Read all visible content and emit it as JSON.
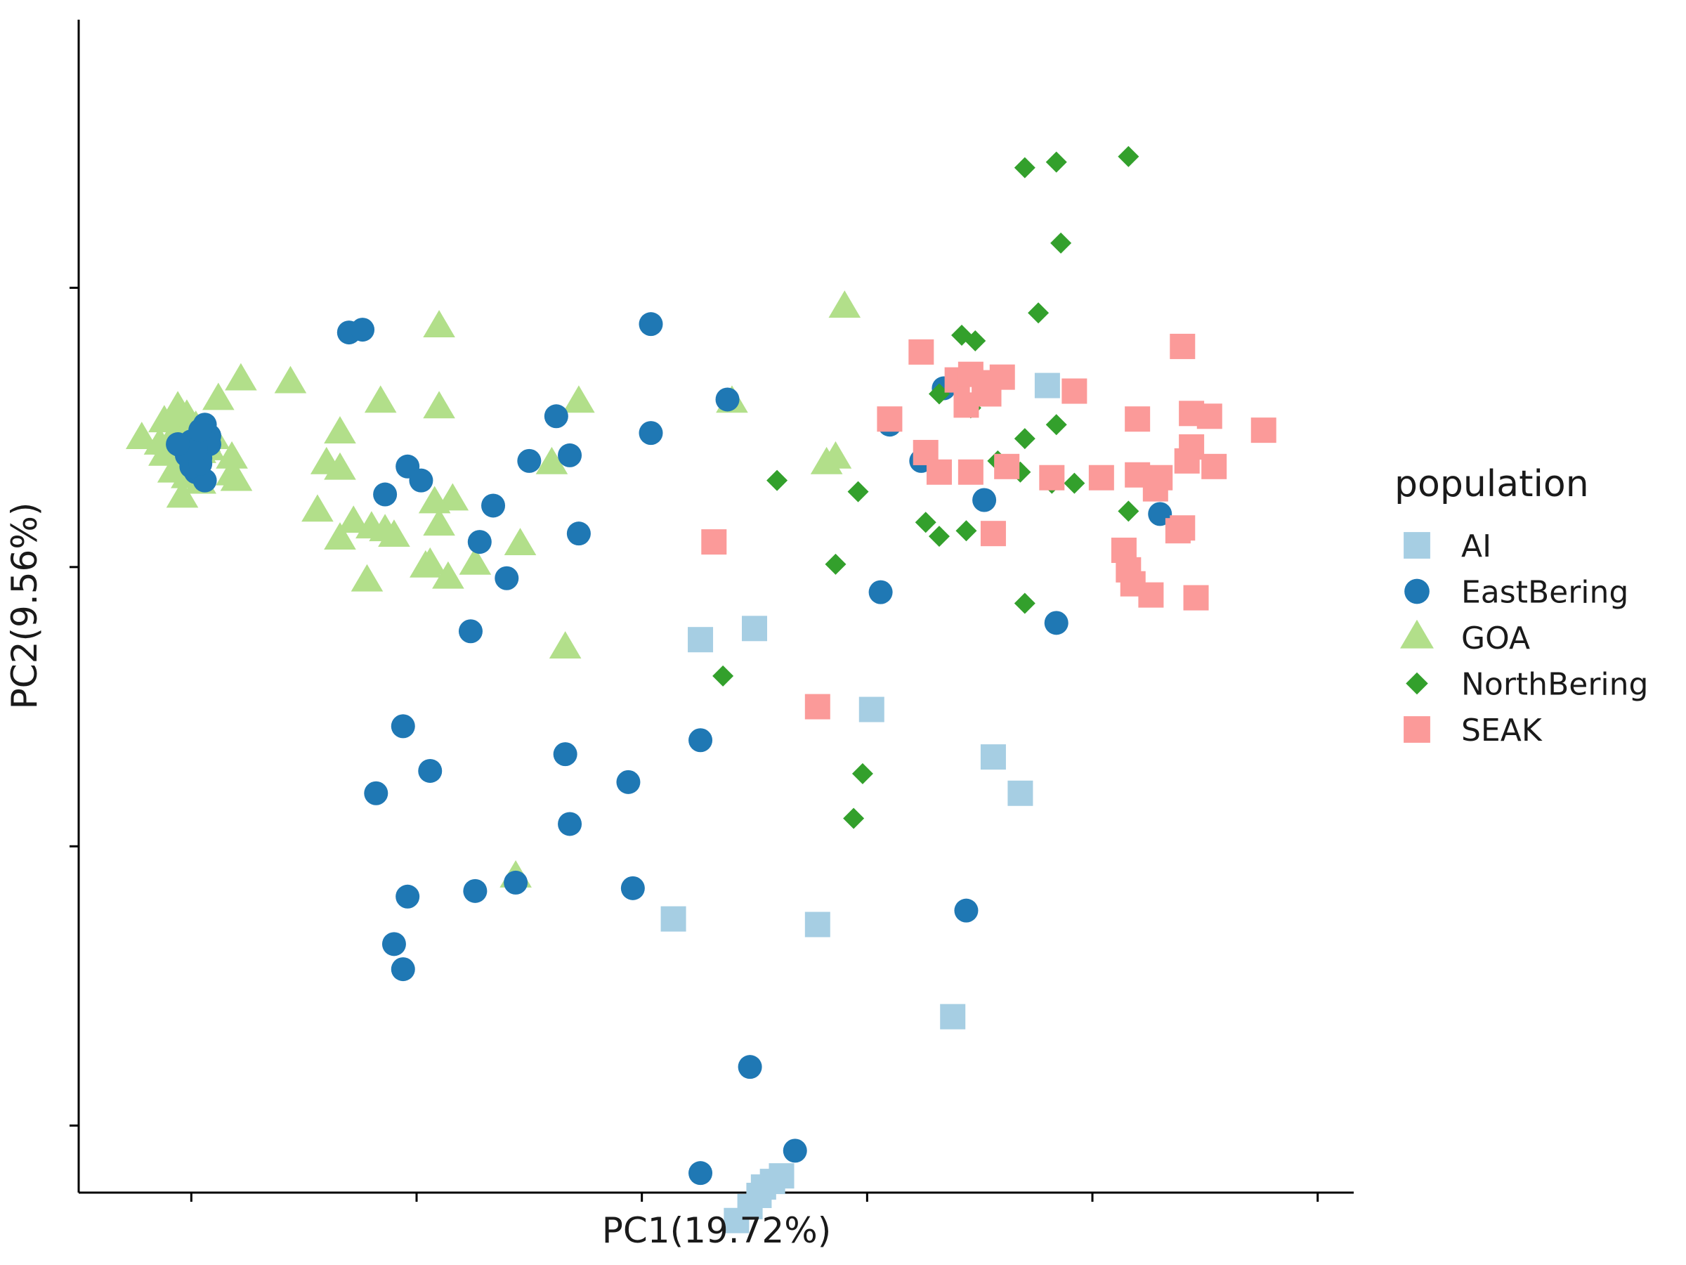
{
  "chart_data": {
    "type": "scatter",
    "xlabel": "PC1(19.72%)",
    "ylabel": "PC2(9.56%)",
    "xlim": [
      -2.5,
      25.8
    ],
    "ylim": [
      -14.4,
      27.6
    ],
    "xticks": [
      0,
      5,
      10,
      15,
      20,
      25
    ],
    "yticks": [
      -12,
      -2,
      8,
      18
    ],
    "grid": false,
    "legend": {
      "title": "population",
      "position": "right"
    },
    "series": [
      {
        "name": "AI",
        "marker": "square",
        "color": "#a6cee3",
        "points": [
          [
            11.3,
            5.4
          ],
          [
            12.5,
            5.8
          ],
          [
            15.1,
            2.9
          ],
          [
            10.7,
            -4.6
          ],
          [
            13.9,
            -4.8
          ],
          [
            18.4,
            -0.1
          ],
          [
            16.9,
            -8.1
          ],
          [
            12.1,
            -15.4
          ],
          [
            12.4,
            -14.9
          ],
          [
            12.7,
            -14.2
          ],
          [
            12.9,
            -14.0
          ],
          [
            13.1,
            -13.8
          ],
          [
            12.6,
            -14.5
          ],
          [
            17.8,
            1.2
          ],
          [
            19.0,
            14.5
          ]
        ]
      },
      {
        "name": "EastBering",
        "marker": "circle",
        "color": "#1f78b4",
        "points": [
          [
            0.3,
            13.1
          ],
          [
            0.4,
            12.7
          ],
          [
            0.2,
            11.9
          ],
          [
            -0.2,
            12.3
          ],
          [
            0.1,
            11.4
          ],
          [
            0.3,
            11.1
          ],
          [
            0.0,
            11.6
          ],
          [
            -0.1,
            12.0
          ],
          [
            0.0,
            12.5
          ],
          [
            0.4,
            12.4
          ],
          [
            0.2,
            11.7
          ],
          [
            0.1,
            12.2
          ],
          [
            -0.3,
            12.4
          ],
          [
            0.2,
            12.9
          ],
          [
            3.5,
            16.4
          ],
          [
            3.8,
            16.5
          ],
          [
            4.3,
            10.6
          ],
          [
            4.8,
            11.6
          ],
          [
            5.1,
            11.1
          ],
          [
            6.7,
            10.2
          ],
          [
            6.4,
            8.9
          ],
          [
            8.1,
            13.4
          ],
          [
            10.2,
            16.7
          ],
          [
            11.9,
            14.0
          ],
          [
            10.2,
            12.8
          ],
          [
            8.4,
            12.0
          ],
          [
            7.5,
            11.8
          ],
          [
            8.6,
            9.2
          ],
          [
            7.0,
            7.6
          ],
          [
            6.2,
            5.7
          ],
          [
            4.7,
            2.3
          ],
          [
            8.3,
            1.3
          ],
          [
            9.7,
            0.3
          ],
          [
            11.3,
            1.8
          ],
          [
            4.1,
            -0.1
          ],
          [
            5.3,
            0.7
          ],
          [
            8.4,
            -1.2
          ],
          [
            4.8,
            -3.8
          ],
          [
            6.3,
            -3.6
          ],
          [
            9.8,
            -3.5
          ],
          [
            7.2,
            -3.3
          ],
          [
            4.5,
            -5.5
          ],
          [
            4.7,
            -6.4
          ],
          [
            12.4,
            -9.9
          ],
          [
            13.4,
            -12.9
          ],
          [
            11.3,
            -13.7
          ],
          [
            17.2,
            -4.3
          ],
          [
            15.3,
            7.1
          ],
          [
            19.2,
            6.0
          ],
          [
            21.5,
            9.9
          ],
          [
            16.7,
            14.4
          ],
          [
            17.6,
            10.4
          ],
          [
            16.2,
            11.8
          ],
          [
            15.5,
            13.1
          ]
        ]
      },
      {
        "name": "GOA",
        "marker": "triangle",
        "color": "#b2df8a",
        "points": [
          [
            -1.1,
            12.6
          ],
          [
            -0.5,
            12.4
          ],
          [
            -0.3,
            12.8
          ],
          [
            -0.1,
            13.4
          ],
          [
            -0.6,
            12.0
          ],
          [
            0.1,
            12.0
          ],
          [
            -0.4,
            11.4
          ],
          [
            -0.1,
            11.7
          ],
          [
            0.3,
            12.5
          ],
          [
            -0.2,
            12.9
          ],
          [
            -0.6,
            13.2
          ],
          [
            -0.3,
            13.7
          ],
          [
            0.5,
            12.6
          ],
          [
            0.2,
            12.1
          ],
          [
            -0.7,
            12.4
          ],
          [
            -0.1,
            11.2
          ],
          [
            0.2,
            11.0
          ],
          [
            0.0,
            12.8
          ],
          [
            -0.4,
            13.3
          ],
          [
            -0.2,
            12.6
          ],
          [
            0.4,
            12.2
          ],
          [
            0.1,
            13.0
          ],
          [
            0.9,
            11.9
          ],
          [
            0.9,
            11.3
          ],
          [
            1.0,
            11.1
          ],
          [
            -0.2,
            10.5
          ],
          [
            0.6,
            14.0
          ],
          [
            1.1,
            14.7
          ],
          [
            2.2,
            14.6
          ],
          [
            3.3,
            12.8
          ],
          [
            3.0,
            11.7
          ],
          [
            3.3,
            11.5
          ],
          [
            4.2,
            13.9
          ],
          [
            5.5,
            16.6
          ],
          [
            5.5,
            13.7
          ],
          [
            5.8,
            10.4
          ],
          [
            2.8,
            10.0
          ],
          [
            3.6,
            9.6
          ],
          [
            3.3,
            9.0
          ],
          [
            4.0,
            9.4
          ],
          [
            4.3,
            9.3
          ],
          [
            4.5,
            9.1
          ],
          [
            3.9,
            7.5
          ],
          [
            5.3,
            8.1
          ],
          [
            5.4,
            10.3
          ],
          [
            5.5,
            9.5
          ],
          [
            5.2,
            8.0
          ],
          [
            5.7,
            7.6
          ],
          [
            6.3,
            8.1
          ],
          [
            7.3,
            8.8
          ],
          [
            8.0,
            11.7
          ],
          [
            8.6,
            13.9
          ],
          [
            8.3,
            5.1
          ],
          [
            12.0,
            13.9
          ],
          [
            14.1,
            11.7
          ],
          [
            14.3,
            11.9
          ],
          [
            14.5,
            17.3
          ],
          [
            7.2,
            -3.1
          ]
        ]
      },
      {
        "name": "NorthBering",
        "marker": "diamond",
        "color": "#33a02c",
        "points": [
          [
            18.5,
            22.3
          ],
          [
            19.2,
            22.5
          ],
          [
            20.8,
            22.7
          ],
          [
            19.3,
            19.6
          ],
          [
            18.8,
            17.1
          ],
          [
            17.1,
            16.3
          ],
          [
            17.4,
            16.1
          ],
          [
            16.6,
            14.2
          ],
          [
            17.3,
            13.7
          ],
          [
            18.5,
            12.6
          ],
          [
            19.2,
            13.1
          ],
          [
            18.4,
            11.4
          ],
          [
            19.1,
            11.0
          ],
          [
            19.6,
            11.0
          ],
          [
            17.9,
            11.8
          ],
          [
            20.8,
            10.0
          ],
          [
            17.2,
            9.3
          ],
          [
            16.3,
            9.6
          ],
          [
            16.6,
            9.1
          ],
          [
            14.8,
            10.7
          ],
          [
            13.0,
            11.1
          ],
          [
            14.3,
            8.1
          ],
          [
            18.5,
            6.7
          ],
          [
            11.8,
            4.1
          ],
          [
            14.9,
            0.6
          ],
          [
            14.7,
            -1.0
          ]
        ]
      },
      {
        "name": "SEAK",
        "marker": "square",
        "color": "#fb9a99",
        "points": [
          [
            16.2,
            15.7
          ],
          [
            17.0,
            14.7
          ],
          [
            17.3,
            14.9
          ],
          [
            17.6,
            14.6
          ],
          [
            18.0,
            14.8
          ],
          [
            17.7,
            14.2
          ],
          [
            17.2,
            13.8
          ],
          [
            19.6,
            14.3
          ],
          [
            15.5,
            13.3
          ],
          [
            21.0,
            13.3
          ],
          [
            16.3,
            12.1
          ],
          [
            16.6,
            11.4
          ],
          [
            17.3,
            11.4
          ],
          [
            18.1,
            11.6
          ],
          [
            19.1,
            11.2
          ],
          [
            20.2,
            11.2
          ],
          [
            21.0,
            11.3
          ],
          [
            21.5,
            11.2
          ],
          [
            21.4,
            10.8
          ],
          [
            22.0,
            15.9
          ],
          [
            22.2,
            13.5
          ],
          [
            22.6,
            13.4
          ],
          [
            22.2,
            12.3
          ],
          [
            22.1,
            11.8
          ],
          [
            22.7,
            11.6
          ],
          [
            23.8,
            12.9
          ],
          [
            22.0,
            9.4
          ],
          [
            20.7,
            8.6
          ],
          [
            21.9,
            9.3
          ],
          [
            20.8,
            7.9
          ],
          [
            20.9,
            7.4
          ],
          [
            21.3,
            7.0
          ],
          [
            22.3,
            6.9
          ],
          [
            17.8,
            9.2
          ],
          [
            11.6,
            8.9
          ],
          [
            13.9,
            3.0
          ]
        ]
      }
    ]
  }
}
